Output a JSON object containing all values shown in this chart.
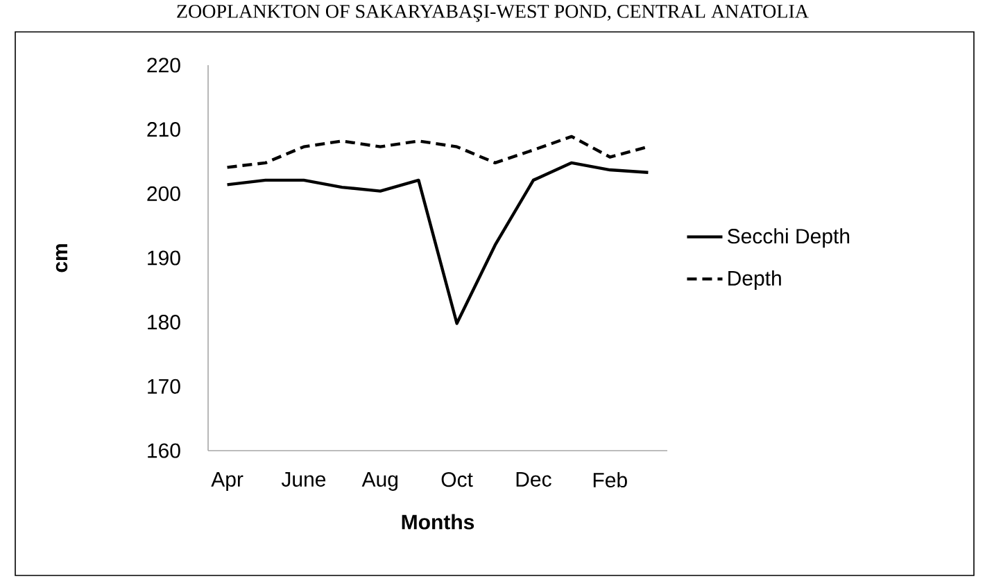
{
  "chart_data": {
    "type": "line",
    "title": "ZOOPLANKTON OF SAKARYABAŞI-WEST POND, CENTRAL ANATOLIA",
    "xlabel": "Months",
    "ylabel": "cm",
    "categories": [
      "Apr",
      null,
      "June",
      null,
      "Aug",
      null,
      "Oct",
      null,
      "Dec",
      null,
      "Feb",
      null
    ],
    "series": [
      {
        "name": "Secchi Depth",
        "color": "#000000",
        "line_style": "solid",
        "values": [
          201.4,
          202.1,
          202.1,
          201.0,
          200.4,
          202.1,
          179.8,
          192.0,
          202.1,
          204.8,
          203.7,
          203.3
        ]
      },
      {
        "name": "Depth",
        "color": "#000000",
        "line_style": "dashed",
        "values": [
          204.1,
          204.8,
          207.3,
          208.2,
          207.3,
          208.2,
          207.3,
          204.8,
          206.8,
          208.9,
          205.7,
          207.3
        ]
      }
    ],
    "ylim": [
      160,
      220
    ],
    "yticks": [
      160,
      170,
      180,
      190,
      200,
      210,
      220
    ],
    "grid": false,
    "legend": "right",
    "marker": "none"
  }
}
